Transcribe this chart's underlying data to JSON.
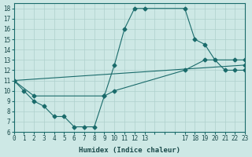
{
  "xlabel": "Humidex (Indice chaleur)",
  "bg_color": "#cde8e5",
  "line_color": "#1a6b6b",
  "grid_color": "#aed0cc",
  "xlim": [
    0,
    23
  ],
  "ylim": [
    6,
    18.5
  ],
  "xticks": [
    0,
    1,
    2,
    3,
    4,
    5,
    6,
    7,
    8,
    9,
    10,
    11,
    12,
    13,
    14,
    15,
    16,
    17,
    18,
    19,
    20,
    21,
    22,
    23
  ],
  "xticklabels": [
    "0",
    "1",
    "2",
    "3",
    "4",
    "5",
    "6",
    "7",
    "8",
    "9",
    "10",
    "11",
    "12",
    "13",
    "",
    "",
    "",
    "17",
    "18",
    "19",
    "20",
    "21",
    "22",
    "23"
  ],
  "yticks": [
    6,
    7,
    8,
    9,
    10,
    11,
    12,
    13,
    14,
    15,
    16,
    17,
    18
  ],
  "line1_x": [
    0,
    1,
    2,
    3,
    4,
    5,
    6,
    7,
    8,
    9,
    10,
    11,
    12,
    13,
    17,
    18,
    19,
    20,
    21,
    22,
    23
  ],
  "line1_y": [
    11,
    10,
    9,
    8.5,
    7.5,
    7.5,
    6.5,
    6.5,
    6.5,
    9.5,
    12.5,
    16,
    18,
    18,
    18,
    15,
    14.5,
    13,
    12,
    12,
    12
  ],
  "line2_x": [
    0,
    2,
    9,
    10,
    17,
    19,
    22,
    23
  ],
  "line2_y": [
    11,
    9.5,
    9.5,
    10,
    12,
    13,
    13,
    13
  ],
  "line3_x": [
    0,
    23
  ],
  "line3_y": [
    11,
    12.5
  ]
}
